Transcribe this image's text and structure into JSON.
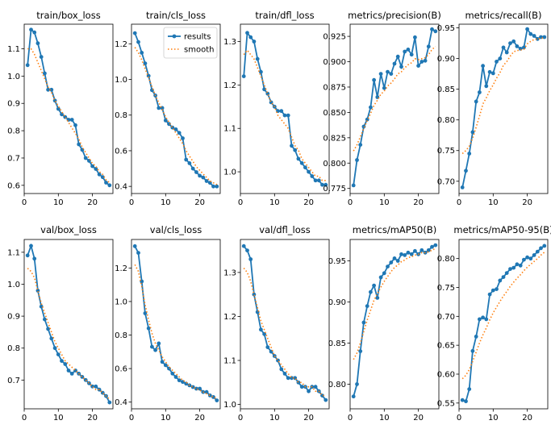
{
  "figure_title": "",
  "legend": {
    "results": "results",
    "smooth": "smooth"
  },
  "colors": {
    "results": "#1f77b4",
    "smooth": "#ff7f0e",
    "axes": "#000000"
  },
  "chart_data": [
    {
      "type": "line",
      "title": "train/box_loss",
      "x": [
        1,
        2,
        3,
        4,
        5,
        6,
        7,
        8,
        9,
        10,
        11,
        12,
        13,
        14,
        15,
        16,
        17,
        18,
        19,
        20,
        21,
        22,
        23,
        24,
        25
      ],
      "results": [
        1.04,
        1.17,
        1.16,
        1.12,
        1.07,
        1.01,
        0.95,
        0.95,
        0.91,
        0.88,
        0.86,
        0.85,
        0.84,
        0.84,
        0.82,
        0.75,
        0.73,
        0.7,
        0.69,
        0.67,
        0.66,
        0.64,
        0.63,
        0.61,
        0.6
      ],
      "smooth": [
        1.1,
        1.1,
        1.08,
        1.05,
        1.02,
        0.99,
        0.96,
        0.94,
        0.91,
        0.89,
        0.87,
        0.85,
        0.83,
        0.81,
        0.79,
        0.77,
        0.74,
        0.72,
        0.7,
        0.68,
        0.67,
        0.65,
        0.64,
        0.62,
        0.61
      ],
      "xlim": [
        0,
        26
      ],
      "ylim": [
        0.57,
        1.19
      ],
      "xticks": [
        0,
        10,
        20
      ],
      "yticks": [
        0.6,
        0.7,
        0.8,
        0.9,
        1.0,
        1.1
      ],
      "xtick_labels": [
        "0",
        "10",
        "20"
      ],
      "ytick_labels": [
        "0.6",
        "0.7",
        "0.8",
        "0.9",
        "1.0",
        "1.1"
      ],
      "legend": false
    },
    {
      "type": "line",
      "title": "train/cls_loss",
      "x": [
        1,
        2,
        3,
        4,
        5,
        6,
        7,
        8,
        9,
        10,
        11,
        12,
        13,
        14,
        15,
        16,
        17,
        18,
        19,
        20,
        21,
        22,
        23,
        24,
        25
      ],
      "results": [
        1.26,
        1.21,
        1.15,
        1.09,
        1.02,
        0.94,
        0.91,
        0.84,
        0.84,
        0.77,
        0.75,
        0.73,
        0.72,
        0.7,
        0.67,
        0.55,
        0.53,
        0.5,
        0.48,
        0.46,
        0.45,
        0.43,
        0.42,
        0.4,
        0.4
      ],
      "smooth": [
        1.18,
        1.15,
        1.11,
        1.06,
        1.01,
        0.96,
        0.91,
        0.87,
        0.83,
        0.79,
        0.76,
        0.73,
        0.7,
        0.67,
        0.64,
        0.6,
        0.57,
        0.54,
        0.51,
        0.49,
        0.47,
        0.45,
        0.43,
        0.42,
        0.41
      ],
      "xlim": [
        0,
        26
      ],
      "ylim": [
        0.36,
        1.31
      ],
      "xticks": [
        0,
        10,
        20
      ],
      "yticks": [
        0.4,
        0.6,
        0.8,
        1.0,
        1.2
      ],
      "xtick_labels": [
        "0",
        "10",
        "20"
      ],
      "ytick_labels": [
        "0.4",
        "0.6",
        "0.8",
        "1.0",
        "1.2"
      ],
      "legend": true
    },
    {
      "type": "line",
      "title": "train/dfl_loss",
      "x": [
        1,
        2,
        3,
        4,
        5,
        6,
        7,
        8,
        9,
        10,
        11,
        12,
        13,
        14,
        15,
        16,
        17,
        18,
        19,
        20,
        21,
        22,
        23,
        24,
        25
      ],
      "results": [
        1.22,
        1.32,
        1.31,
        1.3,
        1.26,
        1.23,
        1.19,
        1.18,
        1.16,
        1.15,
        1.14,
        1.14,
        1.13,
        1.13,
        1.06,
        1.05,
        1.03,
        1.02,
        1.01,
        1.0,
        0.99,
        0.98,
        0.98,
        0.97,
        0.97
      ],
      "smooth": [
        1.27,
        1.28,
        1.27,
        1.26,
        1.24,
        1.22,
        1.2,
        1.18,
        1.16,
        1.15,
        1.13,
        1.12,
        1.11,
        1.1,
        1.08,
        1.06,
        1.05,
        1.03,
        1.02,
        1.01,
        1.0,
        0.99,
        0.99,
        0.98,
        0.98
      ],
      "xlim": [
        0,
        26
      ],
      "ylim": [
        0.95,
        1.34
      ],
      "xticks": [
        0,
        10,
        20
      ],
      "yticks": [
        1.0,
        1.1,
        1.2,
        1.3
      ],
      "xtick_labels": [
        "0",
        "10",
        "20"
      ],
      "ytick_labels": [
        "1.0",
        "1.1",
        "1.2",
        "1.3"
      ],
      "legend": false
    },
    {
      "type": "line",
      "title": "metrics/precision(B)",
      "x": [
        1,
        2,
        3,
        4,
        5,
        6,
        7,
        8,
        9,
        10,
        11,
        12,
        13,
        14,
        15,
        16,
        17,
        18,
        19,
        20,
        21,
        22,
        23,
        24,
        25
      ],
      "results": [
        0.778,
        0.803,
        0.818,
        0.836,
        0.843,
        0.855,
        0.882,
        0.865,
        0.888,
        0.874,
        0.89,
        0.888,
        0.898,
        0.905,
        0.895,
        0.91,
        0.912,
        0.907,
        0.924,
        0.896,
        0.9,
        0.901,
        0.915,
        0.932,
        0.93
      ],
      "smooth": [
        0.812,
        0.818,
        0.826,
        0.834,
        0.842,
        0.849,
        0.857,
        0.862,
        0.868,
        0.871,
        0.876,
        0.879,
        0.883,
        0.888,
        0.89,
        0.894,
        0.897,
        0.899,
        0.903,
        0.902,
        0.903,
        0.904,
        0.907,
        0.912,
        0.915
      ],
      "xlim": [
        0,
        26
      ],
      "ylim": [
        0.77,
        0.937
      ],
      "xticks": [
        0,
        10,
        20
      ],
      "yticks": [
        0.775,
        0.8,
        0.825,
        0.85,
        0.875,
        0.9,
        0.925
      ],
      "xtick_labels": [
        "0",
        "10",
        "20"
      ],
      "ytick_labels": [
        "0.775",
        "0.800",
        "0.825",
        "0.850",
        "0.875",
        "0.900",
        "0.925"
      ],
      "legend": false
    },
    {
      "type": "line",
      "title": "metrics/recall(B)",
      "x": [
        1,
        2,
        3,
        4,
        5,
        6,
        7,
        8,
        9,
        10,
        11,
        12,
        13,
        14,
        15,
        16,
        17,
        18,
        19,
        20,
        21,
        22,
        23,
        24,
        25
      ],
      "results": [
        0.69,
        0.717,
        0.745,
        0.78,
        0.83,
        0.845,
        0.888,
        0.855,
        0.878,
        0.876,
        0.895,
        0.9,
        0.918,
        0.91,
        0.925,
        0.928,
        0.92,
        0.916,
        0.918,
        0.948,
        0.94,
        0.937,
        0.932,
        0.935,
        0.935
      ],
      "smooth": [
        0.745,
        0.75,
        0.757,
        0.77,
        0.788,
        0.806,
        0.826,
        0.836,
        0.848,
        0.857,
        0.868,
        0.877,
        0.889,
        0.895,
        0.904,
        0.911,
        0.913,
        0.914,
        0.915,
        0.924,
        0.928,
        0.931,
        0.932,
        0.933,
        0.934
      ],
      "xlim": [
        0,
        26
      ],
      "ylim": [
        0.68,
        0.956
      ],
      "xticks": [
        0,
        10,
        20
      ],
      "yticks": [
        0.7,
        0.75,
        0.8,
        0.85,
        0.9,
        0.95
      ],
      "xtick_labels": [
        "0",
        "10",
        "20"
      ],
      "ytick_labels": [
        "0.70",
        "0.75",
        "0.80",
        "0.85",
        "0.90",
        "0.95"
      ],
      "legend": false
    },
    {
      "type": "line",
      "title": "val/box_loss",
      "x": [
        1,
        2,
        3,
        4,
        5,
        6,
        7,
        8,
        9,
        10,
        11,
        12,
        13,
        14,
        15,
        16,
        17,
        18,
        19,
        20,
        21,
        22,
        23,
        24,
        25
      ],
      "results": [
        1.09,
        1.12,
        1.08,
        0.98,
        0.93,
        0.89,
        0.86,
        0.83,
        0.8,
        0.78,
        0.76,
        0.75,
        0.73,
        0.72,
        0.73,
        0.72,
        0.71,
        0.7,
        0.69,
        0.68,
        0.68,
        0.67,
        0.66,
        0.65,
        0.63
      ],
      "smooth": [
        1.05,
        1.04,
        1.02,
        0.98,
        0.94,
        0.91,
        0.88,
        0.85,
        0.82,
        0.8,
        0.78,
        0.76,
        0.75,
        0.74,
        0.73,
        0.72,
        0.71,
        0.7,
        0.69,
        0.68,
        0.67,
        0.67,
        0.66,
        0.65,
        0.64
      ],
      "xlim": [
        0,
        26
      ],
      "ylim": [
        0.61,
        1.14
      ],
      "xticks": [
        0,
        10,
        20
      ],
      "yticks": [
        0.7,
        0.8,
        0.9,
        1.0,
        1.1
      ],
      "xtick_labels": [
        "0",
        "10",
        "20"
      ],
      "ytick_labels": [
        "0.7",
        "0.8",
        "0.9",
        "1.0",
        "1.1"
      ],
      "legend": false
    },
    {
      "type": "line",
      "title": "val/cls_loss",
      "x": [
        1,
        2,
        3,
        4,
        5,
        6,
        7,
        8,
        9,
        10,
        11,
        12,
        13,
        14,
        15,
        16,
        17,
        18,
        19,
        20,
        21,
        22,
        23,
        24,
        25
      ],
      "results": [
        1.33,
        1.29,
        1.12,
        0.93,
        0.84,
        0.73,
        0.71,
        0.75,
        0.64,
        0.62,
        0.6,
        0.57,
        0.55,
        0.53,
        0.52,
        0.51,
        0.5,
        0.49,
        0.48,
        0.48,
        0.46,
        0.46,
        0.44,
        0.43,
        0.41
      ],
      "smooth": [
        1.22,
        1.18,
        1.09,
        0.98,
        0.89,
        0.81,
        0.75,
        0.71,
        0.67,
        0.64,
        0.61,
        0.59,
        0.57,
        0.55,
        0.53,
        0.52,
        0.5,
        0.49,
        0.48,
        0.47,
        0.46,
        0.45,
        0.44,
        0.43,
        0.42
      ],
      "xlim": [
        0,
        26
      ],
      "ylim": [
        0.36,
        1.37
      ],
      "xticks": [
        0,
        10,
        20
      ],
      "yticks": [
        0.4,
        0.6,
        0.8,
        1.0,
        1.2
      ],
      "xtick_labels": [
        "0",
        "10",
        "20"
      ],
      "ytick_labels": [
        "0.4",
        "0.6",
        "0.8",
        "1.0",
        "1.2"
      ],
      "legend": false
    },
    {
      "type": "line",
      "title": "val/dfl_loss",
      "x": [
        1,
        2,
        3,
        4,
        5,
        6,
        7,
        8,
        9,
        10,
        11,
        12,
        13,
        14,
        15,
        16,
        17,
        18,
        19,
        20,
        21,
        22,
        23,
        24,
        25
      ],
      "results": [
        1.36,
        1.35,
        1.33,
        1.25,
        1.21,
        1.17,
        1.16,
        1.13,
        1.12,
        1.11,
        1.1,
        1.08,
        1.07,
        1.06,
        1.06,
        1.06,
        1.05,
        1.04,
        1.04,
        1.03,
        1.04,
        1.04,
        1.03,
        1.02,
        1.01
      ],
      "smooth": [
        1.31,
        1.3,
        1.28,
        1.25,
        1.22,
        1.19,
        1.17,
        1.15,
        1.13,
        1.11,
        1.1,
        1.09,
        1.08,
        1.07,
        1.06,
        1.06,
        1.05,
        1.05,
        1.04,
        1.04,
        1.04,
        1.03,
        1.03,
        1.02,
        1.02
      ],
      "xlim": [
        0,
        26
      ],
      "ylim": [
        0.99,
        1.375
      ],
      "xticks": [
        0,
        10,
        20
      ],
      "yticks": [
        1.0,
        1.1,
        1.2,
        1.3
      ],
      "xtick_labels": [
        "0",
        "10",
        "20"
      ],
      "ytick_labels": [
        "1.0",
        "1.1",
        "1.2",
        "1.3"
      ],
      "legend": false
    },
    {
      "type": "line",
      "title": "metrics/mAP50(B)",
      "x": [
        1,
        2,
        3,
        4,
        5,
        6,
        7,
        8,
        9,
        10,
        11,
        12,
        13,
        14,
        15,
        16,
        17,
        18,
        19,
        20,
        21,
        22,
        23,
        24,
        25
      ],
      "results": [
        0.785,
        0.8,
        0.84,
        0.875,
        0.895,
        0.912,
        0.92,
        0.905,
        0.93,
        0.935,
        0.943,
        0.948,
        0.953,
        0.95,
        0.958,
        0.957,
        0.96,
        0.958,
        0.962,
        0.958,
        0.963,
        0.96,
        0.963,
        0.967,
        0.969
      ],
      "smooth": [
        0.83,
        0.838,
        0.85,
        0.864,
        0.878,
        0.89,
        0.902,
        0.91,
        0.918,
        0.925,
        0.931,
        0.937,
        0.942,
        0.945,
        0.949,
        0.951,
        0.954,
        0.955,
        0.957,
        0.958,
        0.96,
        0.96,
        0.961,
        0.963,
        0.965
      ],
      "xlim": [
        0,
        26
      ],
      "ylim": [
        0.77,
        0.976
      ],
      "xticks": [
        0,
        10,
        20
      ],
      "yticks": [
        0.8,
        0.85,
        0.9,
        0.95
      ],
      "xtick_labels": [
        "0",
        "10",
        "20"
      ],
      "ytick_labels": [
        "0.80",
        "0.85",
        "0.90",
        "0.95"
      ],
      "legend": false
    },
    {
      "type": "line",
      "title": "metrics/mAP50-95(B)",
      "x": [
        1,
        2,
        3,
        4,
        5,
        6,
        7,
        8,
        9,
        10,
        11,
        12,
        13,
        14,
        15,
        16,
        17,
        18,
        19,
        20,
        21,
        22,
        23,
        24,
        25
      ],
      "results": [
        0.555,
        0.553,
        0.574,
        0.64,
        0.665,
        0.695,
        0.698,
        0.695,
        0.738,
        0.745,
        0.747,
        0.762,
        0.768,
        0.775,
        0.782,
        0.784,
        0.79,
        0.788,
        0.798,
        0.802,
        0.8,
        0.806,
        0.812,
        0.818,
        0.822
      ],
      "smooth": [
        0.592,
        0.598,
        0.608,
        0.622,
        0.638,
        0.654,
        0.668,
        0.68,
        0.694,
        0.706,
        0.716,
        0.726,
        0.735,
        0.743,
        0.752,
        0.759,
        0.766,
        0.772,
        0.779,
        0.785,
        0.79,
        0.795,
        0.8,
        0.806,
        0.811
      ],
      "xlim": [
        0,
        26
      ],
      "ylim": [
        0.54,
        0.833
      ],
      "xticks": [
        0,
        10,
        20
      ],
      "yticks": [
        0.55,
        0.6,
        0.65,
        0.7,
        0.75,
        0.8
      ],
      "xtick_labels": [
        "0",
        "10",
        "20"
      ],
      "ytick_labels": [
        "0.55",
        "0.60",
        "0.65",
        "0.70",
        "0.75",
        "0.80"
      ],
      "legend": false
    }
  ]
}
